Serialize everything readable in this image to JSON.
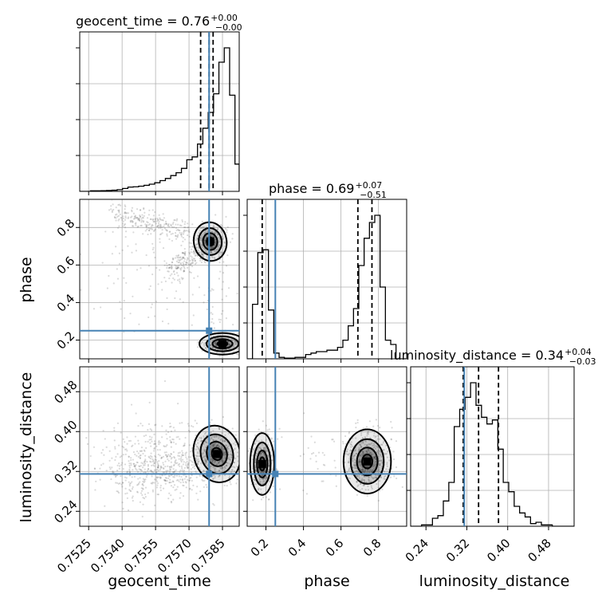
{
  "chart_data": {
    "type": "corner",
    "parameters": [
      "geocent_time",
      "phase",
      "luminosity_distance"
    ],
    "axis_labels": {
      "geocent_time": "geocent_time",
      "phase": "phase",
      "luminosity_distance": "luminosity_distance"
    },
    "titles": [
      {
        "param": "geocent_time",
        "text": "geocent_time = 0.76",
        "plus": "+0.00",
        "minus": "−0.00"
      },
      {
        "param": "phase",
        "text": "phase = 0.69",
        "plus": "+0.07",
        "minus": "−0.51"
      },
      {
        "param": "luminosity_distance",
        "text": "luminosity_distance = 0.34",
        "plus": "+0.04",
        "minus": "−0.03"
      }
    ],
    "ranges": {
      "geocent_time": [
        0.7521,
        0.75925
      ],
      "phase": [
        0.1,
        0.95
      ],
      "luminosity_distance": [
        0.21,
        0.53
      ]
    },
    "ticks": {
      "geocent_time": [
        0.7525,
        0.754,
        0.7555,
        0.757,
        0.7585
      ],
      "phase": [
        0.2,
        0.4,
        0.6,
        0.8
      ],
      "luminosity_distance": [
        0.24,
        0.32,
        0.4,
        0.48
      ]
    },
    "tick_labels": {
      "geocent_time": [
        "0.7525",
        "0.7540",
        "0.7555",
        "0.7570",
        "0.7585"
      ],
      "phase": [
        "0.2",
        "0.4",
        "0.6",
        "0.8"
      ],
      "luminosity_distance": [
        "0.24",
        "0.32",
        "0.40",
        "0.48"
      ]
    },
    "truths": {
      "geocent_time": 0.7579,
      "phase": 0.25,
      "luminosity_distance": 0.315
    },
    "quantiles": {
      "geocent_time": [
        0.75752,
        0.7579,
        0.75808
      ],
      "phase": [
        0.18,
        0.69,
        0.765
      ],
      "luminosity_distance": [
        0.313,
        0.343,
        0.382
      ]
    },
    "histograms": {
      "geocent_time": {
        "edges": [
          0.7521,
          0.75234,
          0.75258,
          0.75282,
          0.75306,
          0.7533,
          0.75354,
          0.75378,
          0.75402,
          0.75426,
          0.7545,
          0.75474,
          0.75498,
          0.75522,
          0.75546,
          0.7557,
          0.75594,
          0.75618,
          0.75642,
          0.75666,
          0.7569,
          0.75714,
          0.75738,
          0.75762,
          0.75786,
          0.7581,
          0.75834,
          0.75858,
          0.75882,
          0.75906,
          0.75925
        ],
        "counts": [
          0,
          0,
          0.4,
          0.4,
          0.5,
          0.6,
          0.8,
          1.2,
          2,
          3,
          3.2,
          3.6,
          4.2,
          5,
          6,
          7.5,
          9,
          11,
          13,
          16,
          22,
          24,
          33,
          44,
          55,
          68,
          90,
          100,
          67,
          19
        ]
      },
      "phase": {
        "edges": [
          0.1,
          0.1283,
          0.1567,
          0.185,
          0.2133,
          0.2417,
          0.27,
          0.2983,
          0.3267,
          0.355,
          0.3833,
          0.4117,
          0.44,
          0.4683,
          0.4967,
          0.525,
          0.5533,
          0.5817,
          0.61,
          0.6383,
          0.6667,
          0.695,
          0.7233,
          0.7517,
          0.78,
          0.8083,
          0.8367,
          0.865,
          0.8933,
          0.9217,
          0.95
        ],
        "counts": [
          0,
          38,
          74,
          76,
          34,
          4,
          1,
          0.5,
          0.5,
          1,
          1,
          3,
          4,
          5,
          5,
          6,
          6,
          8,
          13,
          23,
          35,
          65,
          84,
          95,
          100,
          50,
          13,
          10,
          0,
          0
        ]
      },
      "luminosity_distance": {
        "edges": [
          0.21,
          0.2207,
          0.2313,
          0.242,
          0.2527,
          0.2633,
          0.274,
          0.2847,
          0.2953,
          0.306,
          0.3167,
          0.3273,
          0.338,
          0.3487,
          0.3593,
          0.37,
          0.3807,
          0.3913,
          0.402,
          0.4127,
          0.4233,
          0.434,
          0.4447,
          0.4553,
          0.466,
          0.4767,
          0.4873,
          0.498,
          0.5087,
          0.5193,
          0.53
        ],
        "counts": [
          0,
          0,
          1,
          1,
          6,
          8,
          19,
          33,
          75,
          88,
          97,
          108,
          91,
          82,
          77,
          80,
          58,
          33,
          26,
          15,
          10,
          7,
          2,
          3,
          1,
          1,
          0,
          0,
          0,
          0
        ]
      }
    }
  }
}
